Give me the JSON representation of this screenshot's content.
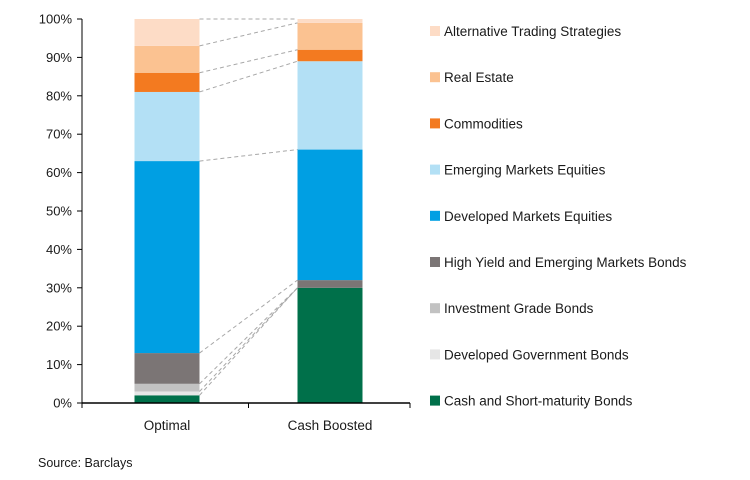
{
  "chart_data": {
    "type": "bar",
    "stacked": true,
    "categories": [
      "Optimal",
      "Cash Boosted"
    ],
    "ylim": [
      0,
      100
    ],
    "yticks": [
      "0%",
      "10%",
      "20%",
      "30%",
      "40%",
      "50%",
      "60%",
      "70%",
      "80%",
      "90%",
      "100%"
    ],
    "y_unit": "%",
    "legend_position": "right",
    "connector_lines": "dashed",
    "series": [
      {
        "name": "Cash and Short-maturity Bonds",
        "color": "#00704a",
        "values": [
          2,
          30
        ]
      },
      {
        "name": "Developed Government Bonds",
        "color": "#e6e6e6",
        "values": [
          1,
          0
        ]
      },
      {
        "name": "Investment Grade Bonds",
        "color": "#c2c2c2",
        "values": [
          2,
          0
        ]
      },
      {
        "name": "High Yield and Emerging Markets Bonds",
        "color": "#7b7575",
        "values": [
          8,
          2
        ]
      },
      {
        "name": "Developed Markets Equities",
        "color": "#009fe3",
        "values": [
          50,
          34
        ]
      },
      {
        "name": "Emerging Markets Equities",
        "color": "#b3e0f5",
        "values": [
          18,
          23
        ]
      },
      {
        "name": "Commodities",
        "color": "#f37a20",
        "values": [
          5,
          3
        ]
      },
      {
        "name": "Real Estate",
        "color": "#fbc291",
        "values": [
          7,
          7
        ]
      },
      {
        "name": "Alternative Trading Strategies",
        "color": "#fddcc6",
        "values": [
          7,
          1
        ]
      }
    ],
    "source": "Source: Barclays"
  }
}
